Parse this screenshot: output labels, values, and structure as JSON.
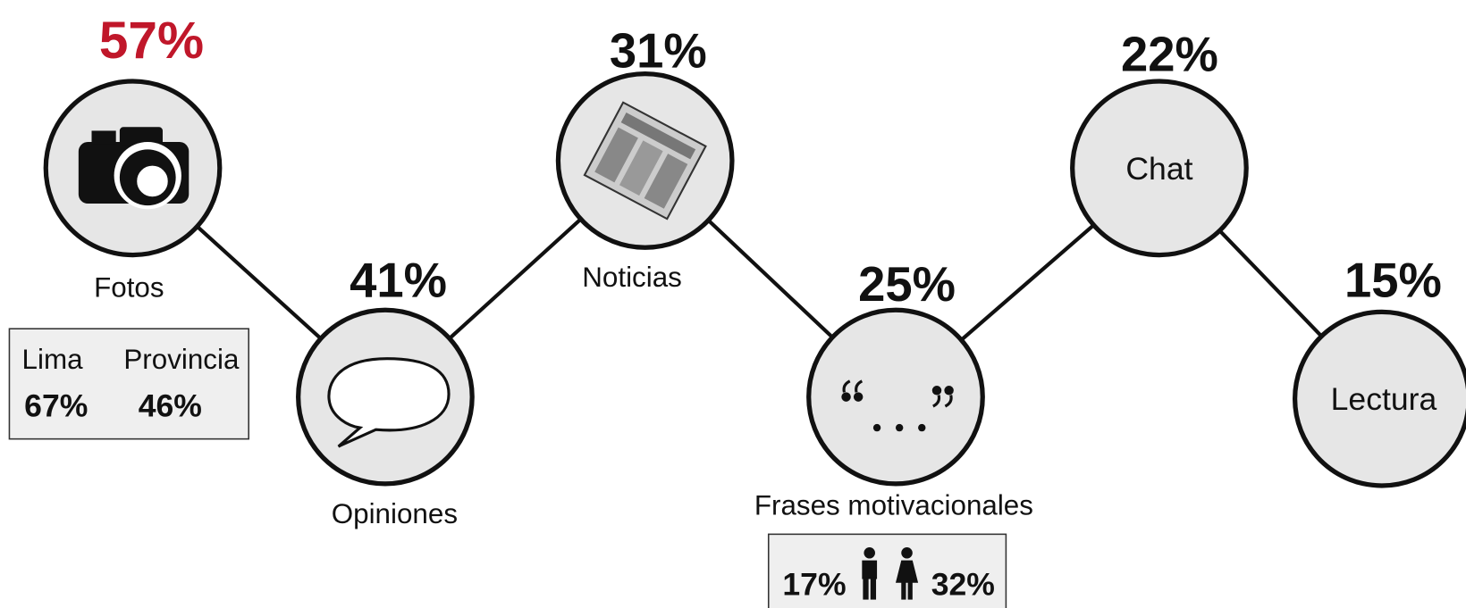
{
  "nodes": [
    {
      "percent": "57%",
      "label": "Fotos"
    },
    {
      "percent": "41%",
      "label": "Opiniones"
    },
    {
      "percent": "31%",
      "label": "Noticias"
    },
    {
      "percent": "25%",
      "label": "Frases motivacionales"
    },
    {
      "percent": "22%",
      "label": "Chat"
    },
    {
      "percent": "15%",
      "label": "Lectura"
    }
  ],
  "region_box": {
    "lima_label": "Lima",
    "provincia_label": "Provincia",
    "lima_percent": "67%",
    "provincia_percent": "46%"
  },
  "gender_box": {
    "male_percent": "17%",
    "female_percent": "32%"
  }
}
